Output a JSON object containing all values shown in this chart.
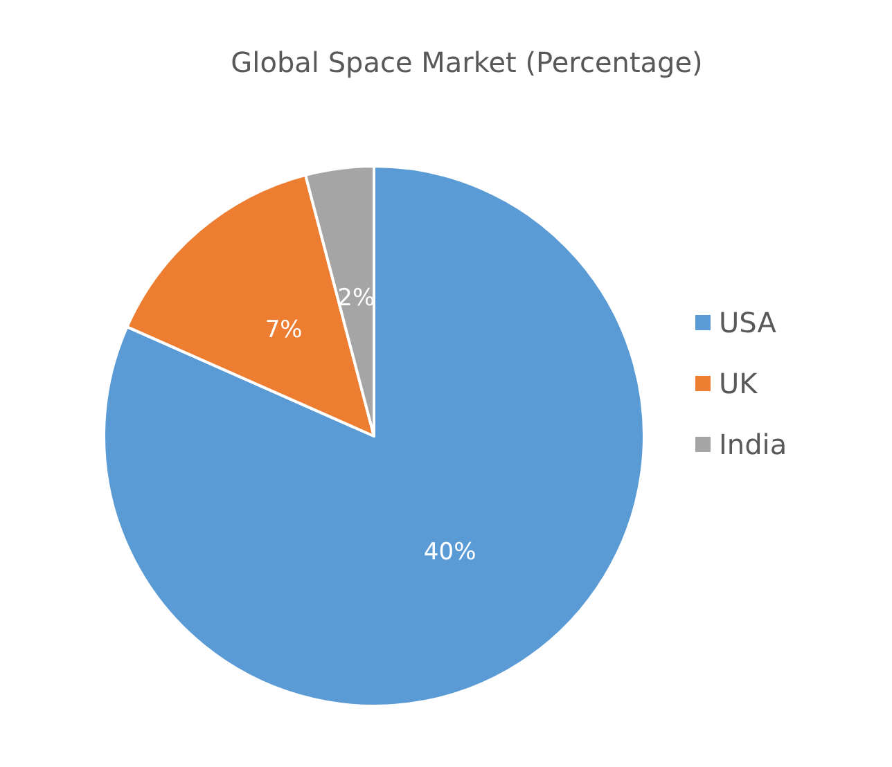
{
  "chart_data": {
    "type": "pie",
    "title": "Global Space Market (Percentage)",
    "categories": [
      "USA",
      "UK",
      "India"
    ],
    "values": [
      40,
      7,
      2
    ],
    "colors": [
      "#5b9bd5",
      "#ed7d31",
      "#a5a5a5"
    ],
    "value_labels": [
      "40%",
      "7%",
      "2%"
    ],
    "legend": "right"
  }
}
